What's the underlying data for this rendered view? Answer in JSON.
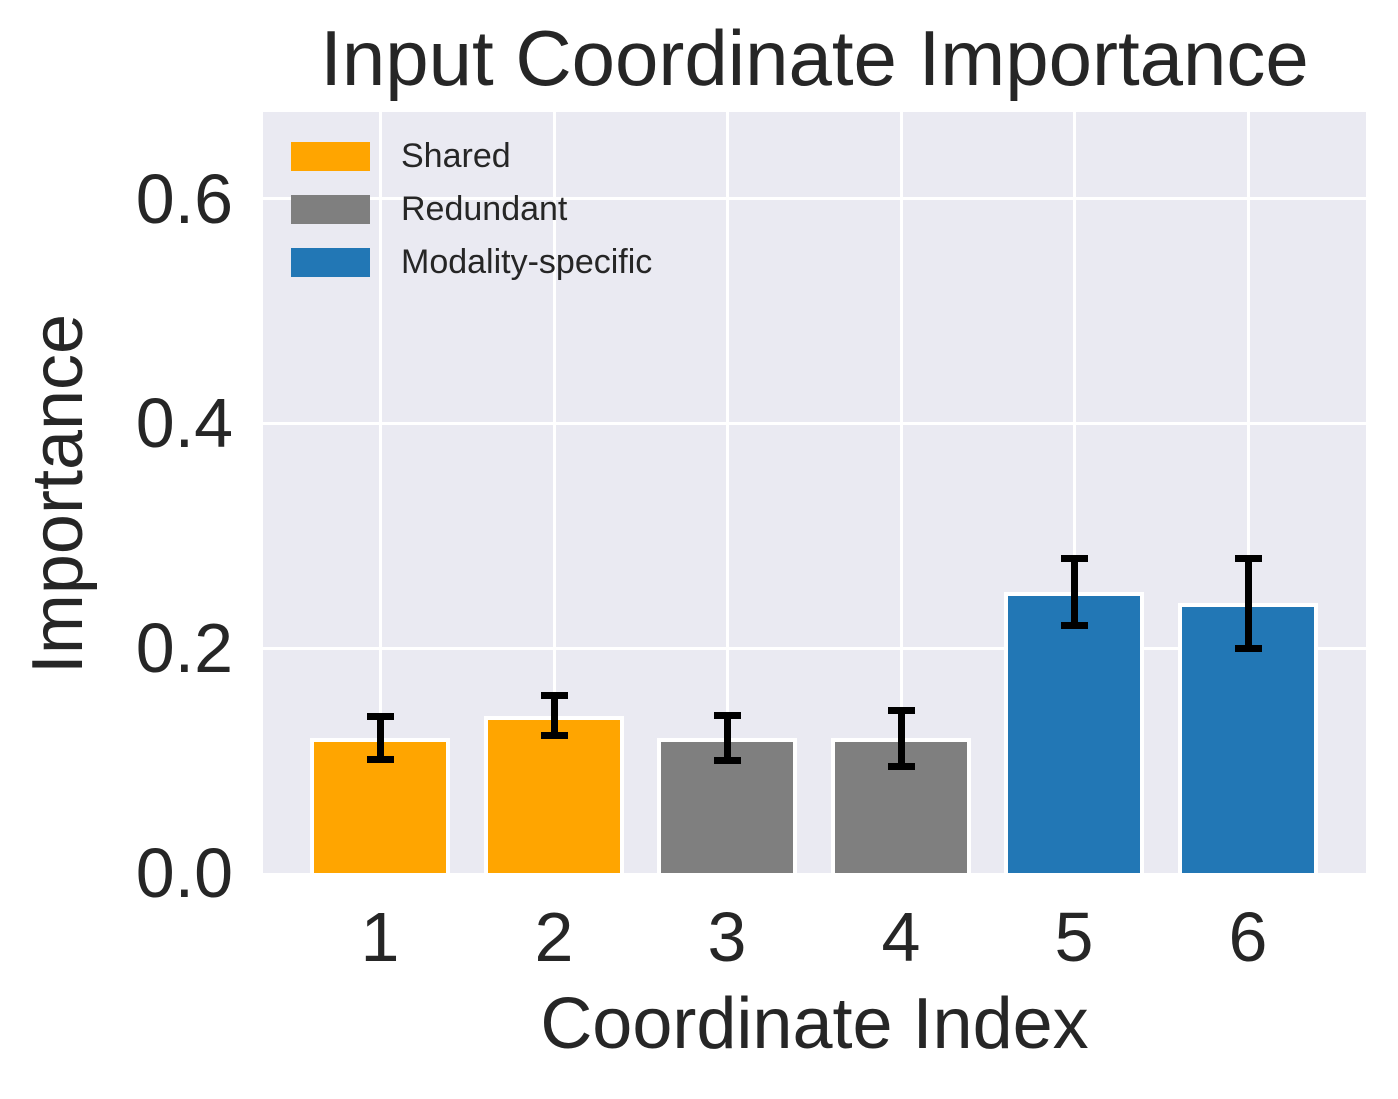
{
  "chart_data": {
    "type": "bar",
    "title": "Input Coordinate Importance",
    "xlabel": "Coordinate Index",
    "ylabel": "Importance",
    "categories": [
      "1",
      "2",
      "3",
      "4",
      "5",
      "6"
    ],
    "values": [
      0.12,
      0.14,
      0.12,
      0.12,
      0.25,
      0.24
    ],
    "errors": [
      0.019,
      0.018,
      0.02,
      0.025,
      0.03,
      0.04
    ],
    "bar_groups": [
      "Shared",
      "Shared",
      "Redundant",
      "Redundant",
      "Modality-specific",
      "Modality-specific"
    ],
    "legend": [
      {
        "label": "Shared",
        "color": "#FFA500"
      },
      {
        "label": "Redundant",
        "color": "#7F7F7F"
      },
      {
        "label": "Modality-specific",
        "color": "#2277B5"
      }
    ],
    "ytick_labels": [
      "0.0",
      "0.2",
      "0.4",
      "0.6"
    ],
    "ytick_values": [
      0.0,
      0.2,
      0.4,
      0.6
    ],
    "ylim": [
      0,
      0.677
    ],
    "grid": true,
    "legend_position": "upper-left",
    "colors": {
      "panel_background": "#EAEAF2",
      "grid": "#FFFFFF",
      "text": "#262626",
      "error_bar": "#000000",
      "figure_background": "#FFFFFF"
    }
  }
}
